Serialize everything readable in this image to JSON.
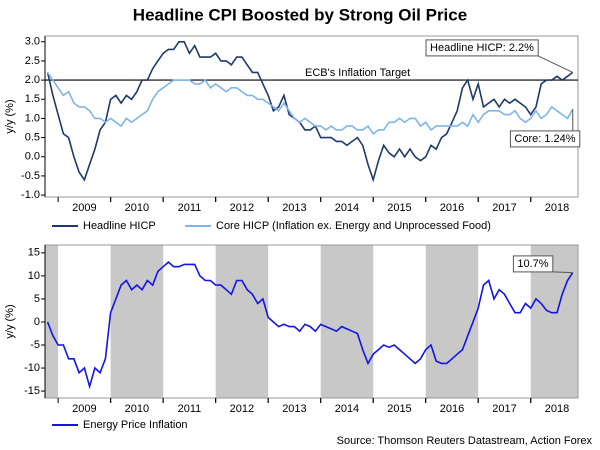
{
  "title": "Headline CPI Boosted by Strong Oil Price",
  "source": "Source: Thomson Reuters Datastream, Action Forex",
  "chart_data": [
    {
      "type": "line",
      "ylabel": "y/y (%)",
      "xlim": [
        2008.75,
        2018.9
      ],
      "ylim": [
        -1.05,
        3.15
      ],
      "yticks": [
        {
          "value": 3,
          "label": "3.0"
        },
        2.5,
        {
          "value": 2,
          "label": "2.0"
        },
        1.5,
        {
          "value": 1,
          "label": "1.0"
        },
        0.5,
        {
          "value": 0,
          "label": "0.0"
        },
        -0.5,
        {
          "value": -1,
          "label": "-1.0"
        }
      ],
      "xticks": [
        {
          "value": 2009.5,
          "label": "2009"
        },
        {
          "value": 2010.5,
          "label": "2010"
        },
        {
          "value": 2011.5,
          "label": "2011"
        },
        {
          "value": 2012.5,
          "label": "2012"
        },
        {
          "value": 2013.5,
          "label": "2013"
        },
        {
          "value": 2014.5,
          "label": "2014"
        },
        {
          "value": 2015.5,
          "label": "2015"
        },
        {
          "value": 2016.5,
          "label": "2016"
        },
        {
          "value": 2017.5,
          "label": "2017"
        },
        {
          "value": 2018.5,
          "label": "2018"
        }
      ],
      "target": {
        "value": 2,
        "label": "ECB's Inflation Target",
        "color": "#000000"
      },
      "x": [
        2008.8,
        2008.9,
        2009.0,
        2009.1,
        2009.2,
        2009.3,
        2009.4,
        2009.5,
        2009.6,
        2009.7,
        2009.8,
        2009.9,
        2010.0,
        2010.1,
        2010.2,
        2010.3,
        2010.4,
        2010.5,
        2010.6,
        2010.7,
        2010.8,
        2010.9,
        2011.0,
        2011.1,
        2011.2,
        2011.3,
        2011.4,
        2011.5,
        2011.6,
        2011.7,
        2011.8,
        2011.9,
        2012.0,
        2012.1,
        2012.2,
        2012.3,
        2012.4,
        2012.5,
        2012.6,
        2012.7,
        2012.8,
        2012.9,
        2013.0,
        2013.1,
        2013.2,
        2013.3,
        2013.4,
        2013.5,
        2013.6,
        2013.7,
        2013.8,
        2013.9,
        2014.0,
        2014.1,
        2014.2,
        2014.3,
        2014.4,
        2014.5,
        2014.6,
        2014.7,
        2014.8,
        2014.9,
        2015.0,
        2015.1,
        2015.2,
        2015.3,
        2015.4,
        2015.5,
        2015.6,
        2015.7,
        2015.8,
        2015.9,
        2016.0,
        2016.1,
        2016.2,
        2016.3,
        2016.4,
        2016.5,
        2016.6,
        2016.7,
        2016.8,
        2016.9,
        2017.0,
        2017.1,
        2017.2,
        2017.3,
        2017.4,
        2017.5,
        2017.6,
        2017.7,
        2017.8,
        2017.9,
        2018.0,
        2018.1,
        2018.2,
        2018.3,
        2018.4,
        2018.5,
        2018.6,
        2018.7,
        2018.8
      ],
      "series": [
        {
          "name": "Headline HICP",
          "color": "#1f3a6a",
          "values": [
            2.2,
            1.6,
            1.1,
            0.6,
            0.5,
            0.0,
            -0.4,
            -0.6,
            -0.2,
            0.2,
            0.7,
            0.9,
            1.5,
            1.6,
            1.4,
            1.6,
            1.5,
            1.7,
            2.0,
            2.0,
            2.3,
            2.5,
            2.7,
            2.8,
            2.8,
            3.0,
            3.0,
            2.7,
            2.9,
            2.6,
            2.6,
            2.6,
            2.7,
            2.5,
            2.5,
            2.4,
            2.6,
            2.6,
            2.4,
            2.2,
            2.2,
            1.9,
            1.6,
            1.2,
            1.3,
            1.6,
            1.1,
            1.0,
            0.9,
            0.7,
            0.7,
            0.8,
            0.5,
            0.5,
            0.5,
            0.4,
            0.4,
            0.3,
            0.4,
            0.5,
            0.3,
            -0.2,
            -0.6,
            -0.1,
            0.3,
            0.1,
            0.0,
            0.2,
            0.0,
            0.2,
            0.0,
            -0.1,
            0.0,
            0.3,
            0.2,
            0.5,
            0.6,
            0.9,
            1.2,
            1.8,
            2.0,
            1.5,
            1.9,
            1.3,
            1.4,
            1.5,
            1.3,
            1.5,
            1.4,
            1.5,
            1.4,
            1.3,
            1.1,
            1.3,
            1.9,
            2.0,
            2.0,
            2.1,
            2.0,
            2.1,
            2.2
          ]
        },
        {
          "name": "Core HICP (Inflation ex. Energy and Unprocessed Food)",
          "color": "#7fb5ea",
          "values": [
            2.2,
            2.0,
            1.8,
            1.6,
            1.7,
            1.4,
            1.3,
            1.3,
            1.2,
            1.0,
            1.0,
            0.9,
            1.0,
            0.9,
            0.8,
            1.0,
            0.9,
            1.0,
            1.1,
            1.2,
            1.5,
            1.7,
            1.8,
            1.9,
            2.0,
            2.0,
            2.0,
            2.0,
            1.9,
            1.9,
            2.0,
            1.8,
            1.9,
            1.8,
            1.7,
            1.8,
            1.8,
            1.7,
            1.6,
            1.6,
            1.5,
            1.5,
            1.4,
            1.3,
            1.2,
            1.4,
            1.2,
            1.0,
            0.9,
            1.0,
            0.9,
            0.8,
            0.8,
            0.7,
            0.8,
            0.7,
            0.7,
            0.8,
            0.8,
            0.7,
            0.7,
            0.8,
            0.6,
            0.7,
            0.7,
            0.9,
            0.9,
            1.0,
            0.9,
            1.0,
            1.0,
            0.8,
            0.9,
            0.7,
            0.8,
            0.8,
            0.8,
            0.8,
            0.8,
            0.9,
            0.8,
            1.1,
            0.9,
            1.1,
            1.2,
            1.2,
            1.2,
            1.1,
            1.1,
            1.2,
            1.0,
            0.9,
            1.0,
            1.2,
            1.0,
            1.1,
            1.3,
            1.2,
            1.1,
            1.0,
            1.24
          ]
        }
      ],
      "annotations": [
        {
          "text": "Headline HICP: 2.2%"
        },
        {
          "text": "Core: 1.24%"
        }
      ]
    },
    {
      "type": "line",
      "ylabel": "y/y (%)",
      "shade_alternate_years": true,
      "xlim": [
        2008.75,
        2018.9
      ],
      "ylim": [
        -16.5,
        16.7
      ],
      "yticks": [
        15,
        10,
        5,
        0,
        -5,
        -10,
        -15
      ],
      "xticks": [
        {
          "value": 2009.5,
          "label": "2009"
        },
        {
          "value": 2010.5,
          "label": "2010"
        },
        {
          "value": 2011.5,
          "label": "2011"
        },
        {
          "value": 2012.5,
          "label": "2012"
        },
        {
          "value": 2013.5,
          "label": "2013"
        },
        {
          "value": 2014.5,
          "label": "2014"
        },
        {
          "value": 2015.5,
          "label": "2015"
        },
        {
          "value": 2016.5,
          "label": "2016"
        },
        {
          "value": 2017.5,
          "label": "2017"
        },
        {
          "value": 2018.5,
          "label": "2018"
        }
      ],
      "x": [
        2008.8,
        2008.9,
        2009.0,
        2009.1,
        2009.2,
        2009.3,
        2009.4,
        2009.5,
        2009.6,
        2009.7,
        2009.8,
        2009.9,
        2010.0,
        2010.1,
        2010.2,
        2010.3,
        2010.4,
        2010.5,
        2010.6,
        2010.7,
        2010.8,
        2010.9,
        2011.0,
        2011.1,
        2011.2,
        2011.3,
        2011.4,
        2011.5,
        2011.6,
        2011.7,
        2011.8,
        2011.9,
        2012.0,
        2012.1,
        2012.2,
        2012.3,
        2012.4,
        2012.5,
        2012.6,
        2012.7,
        2012.8,
        2012.9,
        2013.0,
        2013.1,
        2013.2,
        2013.3,
        2013.4,
        2013.5,
        2013.6,
        2013.7,
        2013.8,
        2013.9,
        2014.0,
        2014.1,
        2014.2,
        2014.3,
        2014.4,
        2014.5,
        2014.6,
        2014.7,
        2014.8,
        2014.9,
        2015.0,
        2015.1,
        2015.2,
        2015.3,
        2015.4,
        2015.5,
        2015.6,
        2015.7,
        2015.8,
        2015.9,
        2016.0,
        2016.1,
        2016.2,
        2016.3,
        2016.4,
        2016.5,
        2016.6,
        2016.7,
        2016.8,
        2016.9,
        2017.0,
        2017.1,
        2017.2,
        2017.3,
        2017.4,
        2017.5,
        2017.6,
        2017.7,
        2017.8,
        2017.9,
        2018.0,
        2018.1,
        2018.2,
        2018.3,
        2018.4,
        2018.5,
        2018.6,
        2018.7,
        2018.8
      ],
      "series": [
        {
          "name": "Energy Price Inflation",
          "color": "#1414e6",
          "values": [
            0,
            -3,
            -5,
            -5,
            -8,
            -8,
            -11,
            -10,
            -14,
            -10,
            -11,
            -8,
            2,
            5,
            8,
            9,
            7,
            8,
            7,
            9,
            8,
            11,
            12,
            13,
            12,
            12,
            12.5,
            12.5,
            12.5,
            10,
            9,
            9,
            8,
            8,
            7,
            6,
            9,
            9,
            7,
            6,
            4,
            5,
            1,
            0,
            -1,
            -0.5,
            -1,
            -1,
            -2,
            -0.5,
            -1,
            -2,
            -0.5,
            -1,
            -1.5,
            -2,
            -1,
            -1.5,
            -2,
            -2.5,
            -6,
            -9,
            -7,
            -6,
            -5,
            -5.5,
            -5,
            -6,
            -7,
            -8,
            -9,
            -8,
            -6,
            -5,
            -8.5,
            -9,
            -9,
            -8,
            -7,
            -6,
            -3,
            0,
            3,
            8,
            9,
            5,
            7,
            6,
            4,
            2,
            2,
            4,
            3,
            5,
            4,
            2.5,
            2,
            2,
            6,
            9,
            10.7
          ]
        }
      ],
      "annotations": [
        {
          "text": "10.7%"
        }
      ]
    }
  ]
}
